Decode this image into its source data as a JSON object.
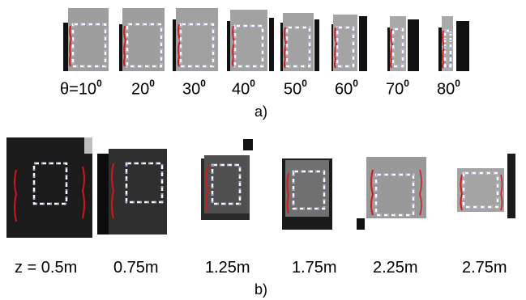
{
  "figure_a": {
    "panel_label": "a)",
    "angle_labels": [
      {
        "prefix": "θ=",
        "value": "10",
        "unit": "0"
      },
      {
        "prefix": "",
        "value": "20",
        "unit": "0"
      },
      {
        "prefix": "",
        "value": "30",
        "unit": "0"
      },
      {
        "prefix": "",
        "value": "40",
        "unit": "0"
      },
      {
        "prefix": "",
        "value": "50",
        "unit": "0"
      },
      {
        "prefix": "",
        "value": "60",
        "unit": "0"
      },
      {
        "prefix": "",
        "value": "70",
        "unit": "0"
      },
      {
        "prefix": "",
        "value": "80",
        "unit": "0"
      }
    ]
  },
  "figure_b": {
    "panel_label": "b)",
    "distance_labels": [
      "z = 0.5m",
      "0.75m",
      "1.25m",
      "1.75m",
      "2.25m",
      "2.75m"
    ]
  },
  "colors": {
    "edge_red": "#d01818",
    "box_blue": "#2a2ad0",
    "box_white": "#ffffff"
  }
}
